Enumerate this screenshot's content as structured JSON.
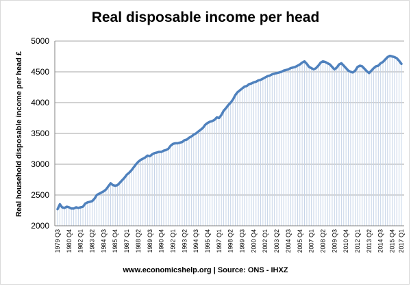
{
  "chart_data": {
    "type": "line",
    "title": "Real disposable income per head",
    "ylabel": "Real household disposable income per head £",
    "xlabel": "",
    "source": "www.economicshelp.org | Source: ONS - IHXZ",
    "ylim": [
      2000,
      5000
    ],
    "yticks": [
      2000,
      2500,
      3000,
      3500,
      4000,
      4500,
      5000
    ],
    "grid": true,
    "legend": "none",
    "colors": {
      "line": "#4f81bd",
      "drop": "#c6d4e8",
      "grid": "#a6a6a6"
    },
    "x_start": "1979 Q3",
    "x_tick_labels": [
      "1979 Q3",
      "1980 Q4",
      "1982 Q1",
      "1983 Q2",
      "1984 Q3",
      "1985 Q4",
      "1987 Q1",
      "1988 Q2",
      "1989 Q3",
      "1990 Q4",
      "1992 Q1",
      "1993 Q2",
      "1994 Q3",
      "1995 Q4",
      "1997 Q1",
      "1998 Q2",
      "1999 Q3",
      "2000 Q4",
      "2002 Q1",
      "2003 Q2",
      "2004 Q3",
      "2005 Q4",
      "2007 Q1",
      "2008 Q2",
      "2009 Q3",
      "2010 Q4",
      "2012 Q1",
      "2013 Q2",
      "2014 Q3",
      "2015 Q4",
      "2017 Q1"
    ],
    "series": [
      {
        "values": [
          2270,
          2350,
          2300,
          2290,
          2310,
          2300,
          2280,
          2280,
          2300,
          2290,
          2300,
          2310,
          2360,
          2380,
          2390,
          2400,
          2440,
          2500,
          2520,
          2540,
          2560,
          2590,
          2640,
          2690,
          2660,
          2650,
          2660,
          2700,
          2740,
          2780,
          2830,
          2860,
          2900,
          2950,
          3000,
          3040,
          3070,
          3090,
          3110,
          3140,
          3130,
          3160,
          3180,
          3190,
          3200,
          3200,
          3220,
          3230,
          3250,
          3300,
          3330,
          3340,
          3340,
          3350,
          3360,
          3390,
          3400,
          3430,
          3450,
          3480,
          3500,
          3530,
          3560,
          3590,
          3640,
          3670,
          3690,
          3700,
          3720,
          3760,
          3750,
          3800,
          3870,
          3910,
          3960,
          4000,
          4050,
          4120,
          4170,
          4200,
          4230,
          4260,
          4270,
          4300,
          4310,
          4330,
          4340,
          4360,
          4370,
          4390,
          4410,
          4430,
          4440,
          4460,
          4470,
          4480,
          4490,
          4500,
          4520,
          4530,
          4540,
          4560,
          4570,
          4580,
          4600,
          4620,
          4650,
          4670,
          4630,
          4580,
          4560,
          4540,
          4560,
          4600,
          4650,
          4670,
          4660,
          4640,
          4620,
          4580,
          4540,
          4570,
          4620,
          4640,
          4600,
          4560,
          4520,
          4500,
          4490,
          4520,
          4580,
          4600,
          4590,
          4550,
          4510,
          4480,
          4520,
          4560,
          4590,
          4600,
          4640,
          4660,
          4700,
          4740,
          4760,
          4750,
          4740,
          4720,
          4680,
          4630
        ]
      }
    ]
  }
}
